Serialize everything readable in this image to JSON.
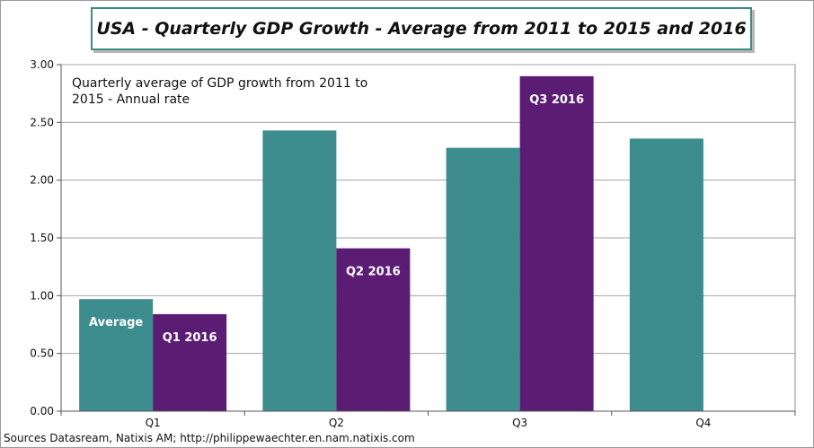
{
  "chart_data": {
    "type": "bar",
    "title": "USA - Quarterly GDP Growth - Average from 2011 to 2015 and 2016",
    "categories": [
      "Q1",
      "Q2",
      "Q3",
      "Q4"
    ],
    "ylim": [
      0,
      3
    ],
    "yticks": [
      "0.00",
      "0.50",
      "1.00",
      "1.50",
      "2.00",
      "2.50",
      "3.00"
    ],
    "grid": true,
    "series": [
      {
        "values": [
          0.97,
          2.43,
          2.28,
          2.36
        ],
        "color": "#3d8c8e"
      },
      {
        "values": [
          0.84,
          1.41,
          2.9,
          null
        ],
        "color": "#5b1d74"
      }
    ],
    "bar_labels": [
      {
        "series": 0,
        "category": 0,
        "text": "Average"
      },
      {
        "series": 1,
        "category": 0,
        "text": "Q1 2016"
      },
      {
        "series": 1,
        "category": 1,
        "text": "Q2 2016"
      },
      {
        "series": 1,
        "category": 2,
        "text": "Q3 2016"
      }
    ],
    "annotation": [
      "Quarterly average of GDP growth from 2011 to",
      "2015 - Annual rate"
    ]
  },
  "source": "Sources Datasream, Natixis AM; http://philippewaechter.en.nam.natixis.com"
}
